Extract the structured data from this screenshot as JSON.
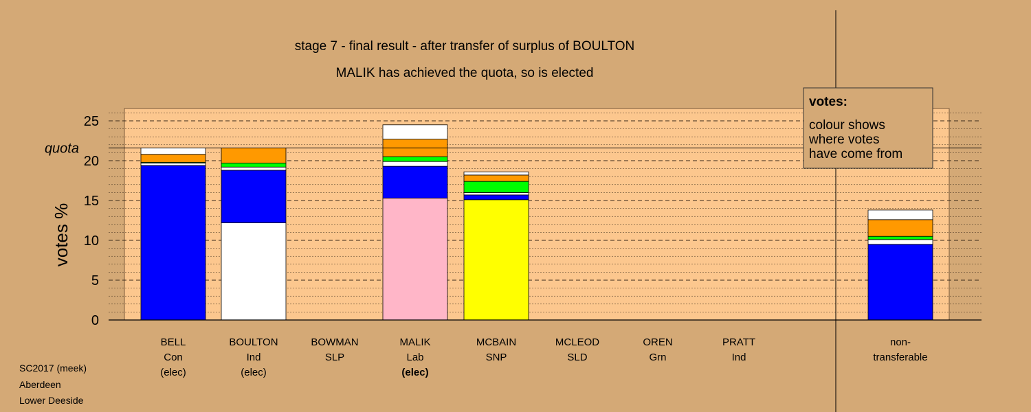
{
  "chart_data": {
    "type": "bar",
    "stacked": true,
    "title": "stage 7 - final result - after transfer of surplus of BOULTON",
    "subtitle": "MALIK has achieved the quota, so is elected",
    "ylabel": "votes %",
    "ylim": [
      0,
      26.5
    ],
    "yticks": [
      0,
      5,
      10,
      15,
      20,
      25
    ],
    "quota": 21.6,
    "quota_label": "quota",
    "grid": true,
    "categories": [
      {
        "lines": [
          "BELL",
          "Con",
          "(elec)"
        ],
        "bold_last": false
      },
      {
        "lines": [
          "BOULTON",
          "Ind",
          "(elec)"
        ],
        "bold_last": false
      },
      {
        "lines": [
          "BOWMAN",
          "SLP"
        ],
        "bold_last": false
      },
      {
        "lines": [
          "MALIK",
          "Lab",
          "(elec)"
        ],
        "bold_last": true
      },
      {
        "lines": [
          "MCBAIN",
          "SNP"
        ],
        "bold_last": false
      },
      {
        "lines": [
          "MCLEOD",
          "SLD"
        ],
        "bold_last": false
      },
      {
        "lines": [
          "OREN",
          "Grn"
        ],
        "bold_last": false
      },
      {
        "lines": [
          "PRATT",
          "Ind"
        ],
        "bold_last": false
      },
      {
        "lines": [
          "non-",
          "transferable"
        ],
        "bold_last": false
      }
    ],
    "stacks": [
      [
        {
          "v": 19.4,
          "c": "#0000ff"
        },
        {
          "v": 0.3,
          "c": "#ffffff"
        },
        {
          "v": 0.1,
          "c": "#00ff00"
        },
        {
          "v": 1.0,
          "c": "#ff9900"
        },
        {
          "v": 0.8,
          "c": "#ffffff"
        }
      ],
      [
        {
          "v": 12.2,
          "c": "#ffffff"
        },
        {
          "v": 6.6,
          "c": "#0000ff"
        },
        {
          "v": 0.4,
          "c": "#ffffff"
        },
        {
          "v": 0.5,
          "c": "#00ff00"
        },
        {
          "v": 1.9,
          "c": "#ff9900"
        }
      ],
      [],
      [
        {
          "v": 15.3,
          "c": "#ffb6c8"
        },
        {
          "v": 4.0,
          "c": "#0000ff"
        },
        {
          "v": 0.6,
          "c": "#ffffff"
        },
        {
          "v": 0.6,
          "c": "#00ff00"
        },
        {
          "v": 2.2,
          "c": "#ff9900"
        },
        {
          "v": 1.8,
          "c": "#ffffff"
        }
      ],
      [
        {
          "v": 15.1,
          "c": "#ffff00"
        },
        {
          "v": 0.6,
          "c": "#0000ff"
        },
        {
          "v": 0.3,
          "c": "#ffffff"
        },
        {
          "v": 1.4,
          "c": "#00ff00"
        },
        {
          "v": 0.8,
          "c": "#ff9900"
        },
        {
          "v": 0.4,
          "c": "#ffffff"
        }
      ],
      [],
      [],
      [],
      [
        {
          "v": 9.5,
          "c": "#0000ff"
        },
        {
          "v": 0.6,
          "c": "#ffffff"
        },
        {
          "v": 0.4,
          "c": "#00ff00"
        },
        {
          "v": 2.1,
          "c": "#ff9900"
        },
        {
          "v": 1.2,
          "c": "#ffffff"
        }
      ]
    ],
    "legend": {
      "placement": "top-right",
      "title": "votes:",
      "lines": [
        "colour shows",
        "where votes",
        "have come from"
      ]
    }
  },
  "footer": {
    "lines": [
      "SC2017 (meek)",
      "Aberdeen",
      "Lower Deeside"
    ]
  },
  "colors": {
    "page_background": "#d4a976",
    "plot_background": "#fcc78e",
    "legend_background": "#d4a976"
  }
}
